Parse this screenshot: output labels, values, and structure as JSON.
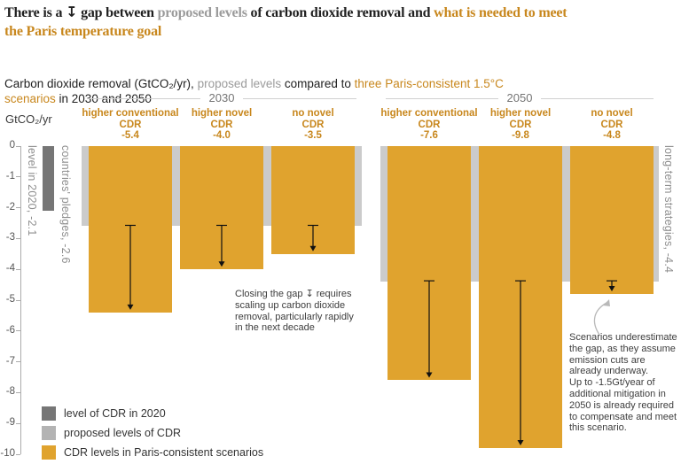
{
  "title": {
    "line1": [
      {
        "t": "There is a ",
        "c": "dark"
      },
      {
        "t": "↧",
        "c": "dark",
        "arrow": true
      },
      {
        "t": " gap between ",
        "c": "dark"
      },
      {
        "t": "proposed levels",
        "c": "gray"
      },
      {
        "t": " of carbon dioxide removal and ",
        "c": "dark"
      },
      {
        "t": "what is needed to meet",
        "c": "orange"
      }
    ],
    "line2": [
      {
        "t": "the Paris temperature goal",
        "c": "orange"
      }
    ]
  },
  "subtitle": {
    "line1": [
      {
        "t": "Carbon dioxide removal (GtCO₂/yr), ",
        "c": "dark"
      },
      {
        "t": "proposed levels",
        "c": "gray"
      },
      {
        "t": " compared to ",
        "c": "dark"
      },
      {
        "t": "three Paris-consistent 1.5°C",
        "c": "orange"
      }
    ],
    "line2": [
      {
        "t": "scenarios",
        "c": "orange"
      },
      {
        "t": " in 2030 and 2050",
        "c": "dark"
      }
    ]
  },
  "colors": {
    "orange": "#e0a32e",
    "orange_text": "#c8871d",
    "dark_gray_bar": "#767676",
    "light_gray_bar": "#cbcbcb",
    "legend_light_gray": "#b3b3b3",
    "text_dark": "#1f1f1f",
    "text_gray": "#9b9b9b",
    "annotation_text": "#3d3d3d",
    "arrow_black": "#111111",
    "curve_arrow_gray": "#b9b9b9"
  },
  "chart_data": {
    "type": "bar",
    "axis": {
      "label": "GtCO₂/yr",
      "min": -10,
      "max": 0,
      "ticks": [
        0,
        -1,
        -2,
        -3,
        -4,
        -5,
        -6,
        -7,
        -8,
        -9,
        -10
      ]
    },
    "level_2020": {
      "label": "level in 2020, -2.1",
      "value": -2.1
    },
    "groups": [
      {
        "year": "2030",
        "pledge": {
          "label": "countries' pledges, -2.6",
          "value": -2.6
        },
        "scenarios": [
          {
            "name_lines": [
              "higher conventional",
              "CDR"
            ],
            "value": -5.4
          },
          {
            "name_lines": [
              "higher novel",
              "CDR"
            ],
            "value": -4.0
          },
          {
            "name_lines": [
              "no novel",
              "CDR"
            ],
            "value": -3.5
          }
        ]
      },
      {
        "year": "2050",
        "pledge": {
          "label": "long-term strategies, -4.4",
          "value": -4.4
        },
        "scenarios": [
          {
            "name_lines": [
              "higher conventional",
              "CDR"
            ],
            "value": -7.6
          },
          {
            "name_lines": [
              "higher novel",
              "CDR"
            ],
            "value": -9.8
          },
          {
            "name_lines": [
              "no novel",
              "CDR"
            ],
            "value": -4.8
          }
        ]
      }
    ]
  },
  "annotations": {
    "gap_note": {
      "lines": [
        "Closing the gap ↧ requires",
        "scaling up carbon dioxide",
        "removal, particularly rapidly",
        "in the next decade"
      ]
    },
    "scenario_note": {
      "lines": [
        "Scenarios underestimate",
        "the gap, as they assume",
        "emission cuts are",
        "already underway.",
        "Up to -1.5Gt/year of",
        "additional mitigation in",
        "2050 is already required",
        "to compensate and meet",
        "this scenario."
      ]
    }
  },
  "legend": {
    "items": [
      {
        "label": "level of CDR in 2020",
        "color_key": "dark_gray_bar"
      },
      {
        "label": "proposed levels of CDR",
        "color_key": "legend_light_gray"
      },
      {
        "label": "CDR levels in Paris-consistent scenarios",
        "color_key": "orange"
      }
    ]
  }
}
